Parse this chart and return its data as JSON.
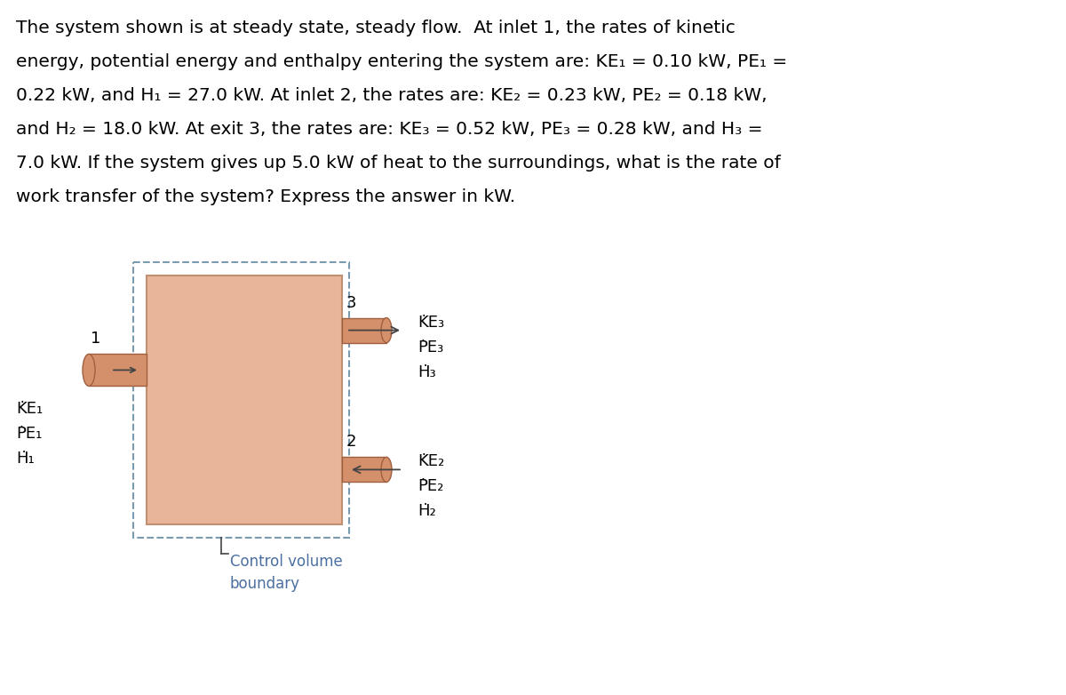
{
  "background_color": "#ffffff",
  "text_color": "#000000",
  "box_fill": "#e8b49a",
  "box_edge": "#c09070",
  "dash_edge": "#7a9ab0",
  "pipe_fill": "#d4906a",
  "pipe_edge": "#a06040",
  "label_blue": "#4a6fa0",
  "font_size_body": 14.5,
  "font_size_diagram": 13,
  "lines": [
    "The system shown is at steady state, steady flow.  At inlet 1, the rates of kinetic",
    "energy, potential energy and enthalpy entering the system are: KE\\u2081 = 0.10 kW, PE\\u2081 =",
    "0.22 kW, and H\\u2081 = 27.0 kW. At inlet 2, the rates are: KE\\u2082 = 0.23 kW, PE\\u2082 = 0.18 kW,",
    "and H\\u2082 = 18.0 kW. At exit 3, the rates are: KE\\u2083 = 0.52 kW, PE\\u2083 = 0.28 kW, and H\\u2083 =",
    "7.0 kW. If the system gives up 5.0 kW of heat to the surroundings, what is the rate of",
    "work transfer of the system? Express the answer in kW."
  ]
}
